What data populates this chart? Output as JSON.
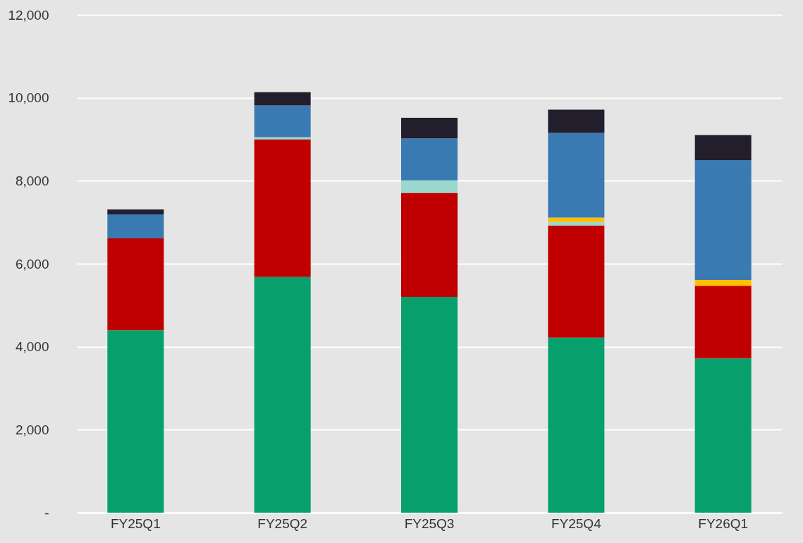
{
  "chart_data": {
    "type": "bar",
    "stacked": true,
    "categories": [
      "FY25Q1",
      "FY25Q2",
      "FY25Q3",
      "FY25Q4",
      "FY26Q1"
    ],
    "series": [
      {
        "color": "#07a06c",
        "values": [
          4400,
          5680,
          5200,
          4220,
          3720
        ]
      },
      {
        "color": "#c00000",
        "values": [
          2210,
          3320,
          2510,
          2700,
          1750
        ]
      },
      {
        "color": "#9dd8cf",
        "values": [
          null,
          50,
          300,
          85,
          null
        ]
      },
      {
        "color": "#ffc000",
        "values": [
          null,
          null,
          null,
          110,
          140
        ]
      },
      {
        "color": "#3a7ab2",
        "values": [
          580,
          765,
          1010,
          2040,
          2890
        ]
      },
      {
        "color": "#221e2b",
        "values": [
          120,
          320,
          500,
          560,
          600
        ]
      }
    ],
    "ylim": [
      0,
      12000
    ],
    "yticks": [
      {
        "value": 0,
        "label": "-"
      },
      {
        "value": 2000,
        "label": "2,000"
      },
      {
        "value": 4000,
        "label": "4,000"
      },
      {
        "value": 6000,
        "label": "6,000"
      },
      {
        "value": 8000,
        "label": "8,000"
      },
      {
        "value": 10000,
        "label": "10,000"
      },
      {
        "value": 12000,
        "label": "12,000"
      }
    ],
    "grid": "y",
    "legend": false
  }
}
